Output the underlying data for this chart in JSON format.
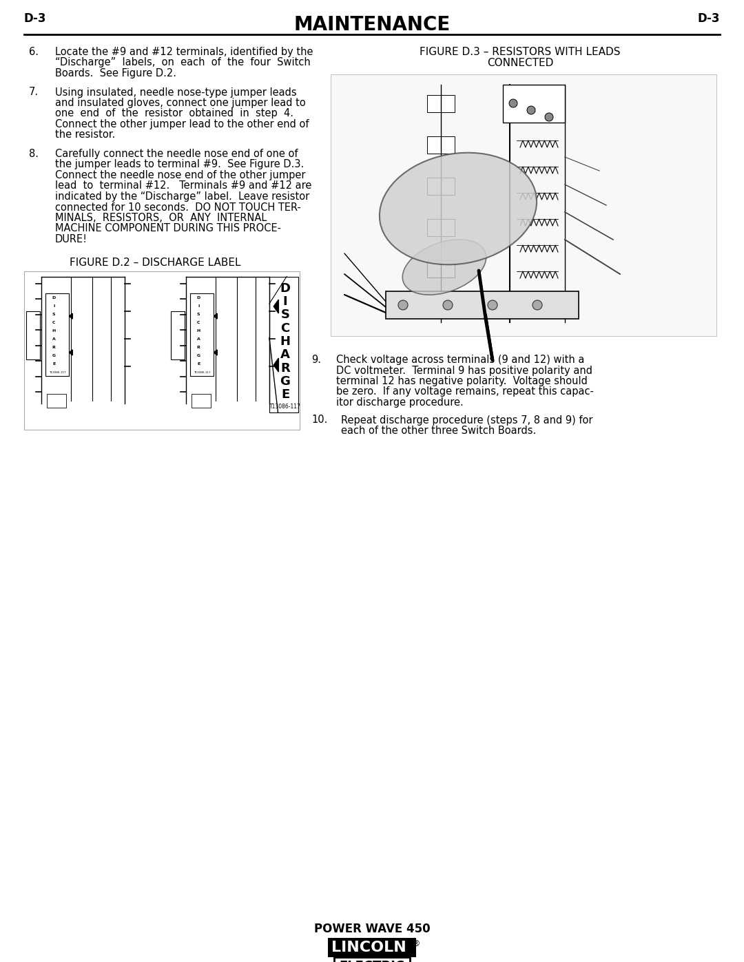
{
  "page_header_left": "D-3",
  "page_header_right": "D-3",
  "page_title": "MAINTENANCE",
  "background_color": "#ffffff",
  "text_color": "#000000",
  "items_left": [
    {
      "num": "6.",
      "text": "Locate the #9 and #12 terminals, identified by the\n“Discharge”  labels,  on  each  of  the  four  Switch\nBoards.  See Figure D.2."
    },
    {
      "num": "7.",
      "text": "Using insulated, needle nose-type jumper leads\nand insulated gloves, connect one jumper lead to\none  end  of  the  resistor  obtained  in  step  4.\nConnect the other jumper lead to the other end of\nthe resistor."
    },
    {
      "num": "8.",
      "text": "Carefully connect the needle nose end of one of\nthe jumper leads to terminal #9.  See Figure D.3.\nConnect the needle nose end of the other jumper\nlead  to  terminal #12.   Terminals #9 and #12 are\nindicated by the “Discharge” label.  Leave resistor\nconnected for 10 seconds.  DO NOT TOUCH TER-\nMINALS,  RESISTORS,  OR  ANY  INTERNAL\nMACHINE COMPONENT DURING THIS PROCE-\nDURE!"
    }
  ],
  "items_right": [
    {
      "num": "9.",
      "text": "Check voltage across terminals (9 and 12) with a\nDC voltmeter.  Terminal 9 has positive polarity and\nterminal 12 has negative polarity.  Voltage should\nbe zero.  If any voltage remains, repeat this capac-\nitor discharge procedure."
    },
    {
      "num": "10.",
      "text": "Repeat discharge procedure (steps 7, 8 and 9) for\neach of the other three Switch Boards."
    }
  ],
  "fig_d2_title": "FIGURE D.2 – DISCHARGE LABEL",
  "fig_d3_line1": "FIGURE D.3 – RESISTORS WITH LEADS",
  "fig_d3_line2": "CONNECTED",
  "footer_text": "POWER WAVE 450",
  "fig_d2_label_id": "T13086-117"
}
